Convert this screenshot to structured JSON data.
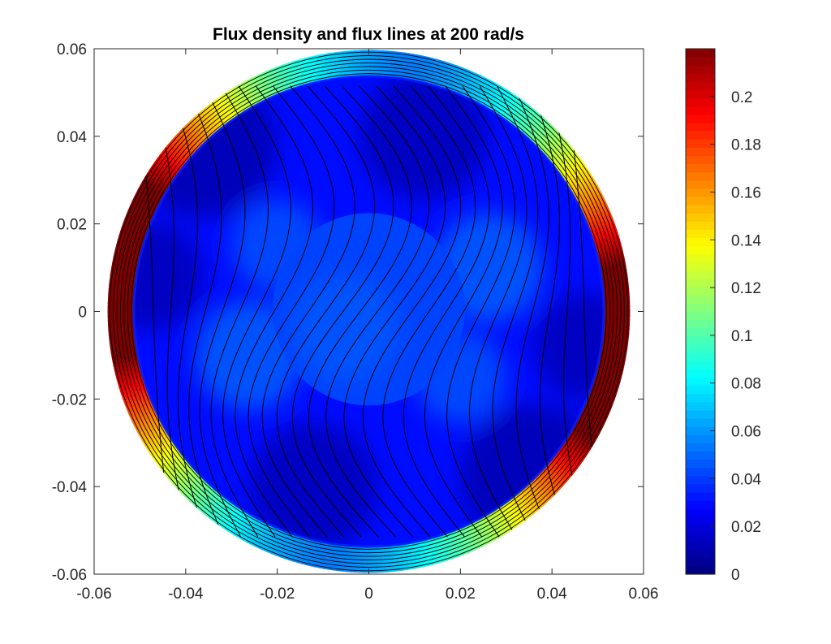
{
  "chart_data": {
    "type": "heatmap",
    "title": "Flux density and flux lines at 200 rad/s",
    "xlabel": "",
    "ylabel": "",
    "xlim": [
      -0.06,
      0.06
    ],
    "ylim": [
      -0.06,
      0.06
    ],
    "x_ticks": [
      -0.06,
      -0.04,
      -0.02,
      0,
      0.02,
      0.04,
      0.06
    ],
    "y_ticks": [
      -0.06,
      -0.04,
      -0.02,
      0,
      0.02,
      0.04,
      0.06
    ],
    "x_tick_labels": [
      "-0.06",
      "-0.04",
      "-0.02",
      "0",
      "0.02",
      "0.04",
      "0.06"
    ],
    "y_tick_labels": [
      "-0.06",
      "-0.04",
      "-0.02",
      "0",
      "0.02",
      "0.04",
      "0.06"
    ],
    "colorbar": {
      "colormap": "jet",
      "limits": [
        0,
        0.22
      ],
      "ticks": [
        0,
        0.02,
        0.04,
        0.06,
        0.08,
        0.1,
        0.12,
        0.14,
        0.16,
        0.18,
        0.2
      ],
      "tick_labels": [
        "0",
        "0.02",
        "0.04",
        "0.06",
        "0.08",
        "0.1",
        "0.12",
        "0.14",
        "0.16",
        "0.18",
        "0.2"
      ]
    },
    "geometry": {
      "outer_radius": 0.057,
      "ring_inner_radius": 0.0515,
      "rotor_radius": 0.021,
      "rotor_center": [
        0,
        0.0005
      ]
    },
    "regions": [
      {
        "name": "outer ring",
        "flux_density_range": [
          0.05,
          0.22
        ]
      },
      {
        "name": "interior",
        "flux_density_range": [
          0.005,
          0.05
        ]
      },
      {
        "name": "rotor",
        "flux_density_range": [
          0.03,
          0.05
        ]
      }
    ],
    "flux_lines": {
      "count": 26,
      "twist_sense": "s-shaped",
      "ring_lines": 7
    },
    "grid": false,
    "legend": "none"
  }
}
